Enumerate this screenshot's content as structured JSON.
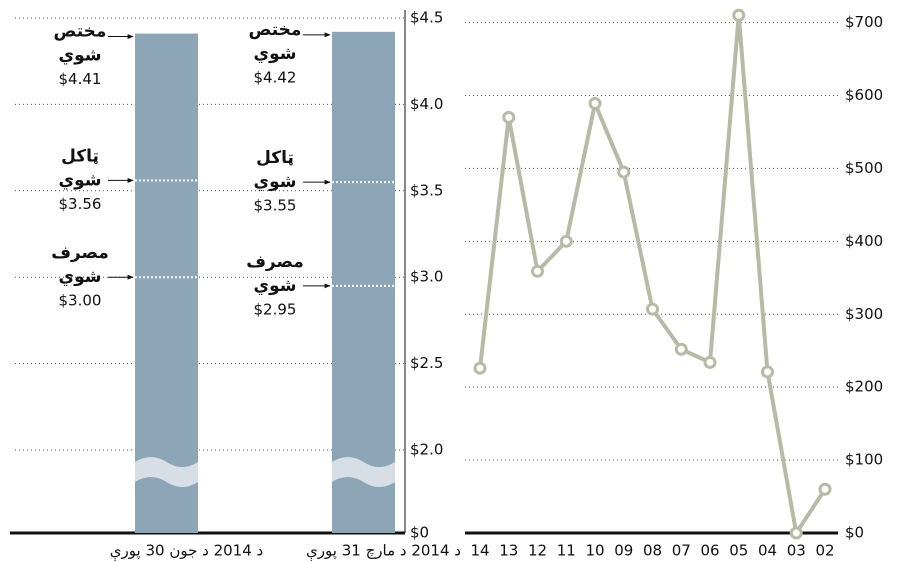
{
  "chart_data": [
    {
      "type": "bar",
      "categories": [
        "د 2014 د جون 30 پورې",
        "د 2014 د مارچ 31 پورې"
      ],
      "values": [
        4.41,
        4.42
      ],
      "color": "#8ca5b7",
      "ylim": [
        0,
        4.5
      ],
      "axis_break": [
        0,
        2.0
      ],
      "yticks": [
        {
          "value": 0,
          "label": "$0"
        },
        {
          "value": 2.0,
          "label": "$2.0"
        },
        {
          "value": 2.5,
          "label": "$2.5"
        },
        {
          "value": 3.0,
          "label": "$3.0"
        },
        {
          "value": 3.5,
          "label": "$3.5"
        },
        {
          "value": 4.0,
          "label": "$4.0"
        },
        {
          "value": 4.5,
          "label": "$4.5"
        }
      ],
      "grid": true,
      "annotations": [
        [
          {
            "label": [
              "مختص",
              "شوي"
            ],
            "value": 4.41,
            "value_label": "$4.41"
          },
          {
            "label": [
              "ټاکل",
              "شوي"
            ],
            "value": 3.56,
            "value_label": "$3.56"
          },
          {
            "label": [
              "مصرف",
              "شوي"
            ],
            "value": 3.0,
            "value_label": "$3.00"
          }
        ],
        [
          {
            "label": [
              "مختص",
              "شوي"
            ],
            "value": 4.42,
            "value_label": "$4.42"
          },
          {
            "label": [
              "ټاکل",
              "شوي"
            ],
            "value": 3.55,
            "value_label": "$3.55"
          },
          {
            "label": [
              "مصرف",
              "شوي"
            ],
            "value": 2.95,
            "value_label": "$2.95"
          }
        ]
      ]
    },
    {
      "type": "line",
      "categories": [
        "14",
        "13",
        "12",
        "11",
        "10",
        "09",
        "08",
        "07",
        "06",
        "05",
        "04",
        "03",
        "02"
      ],
      "values": [
        226,
        570,
        359,
        400,
        589,
        495,
        307,
        252,
        234,
        710,
        221,
        0,
        60
      ],
      "color": "#b8baa5",
      "ylim": [
        0,
        720
      ],
      "yticks": [
        {
          "value": 0,
          "label": "$0"
        },
        {
          "value": 100,
          "label": "$100"
        },
        {
          "value": 200,
          "label": "$200"
        },
        {
          "value": 300,
          "label": "$300"
        },
        {
          "value": 400,
          "label": "$400"
        },
        {
          "value": 500,
          "label": "$500"
        },
        {
          "value": 600,
          "label": "$600"
        },
        {
          "value": 700,
          "label": "$700"
        }
      ],
      "grid": true
    }
  ]
}
